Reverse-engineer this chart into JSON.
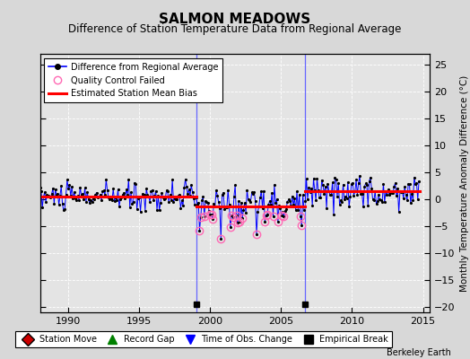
{
  "title": "SALMON MEADOWS",
  "subtitle": "Difference of Station Temperature Data from Regional Average",
  "ylabel_right": "Monthly Temperature Anomaly Difference (°C)",
  "xlim": [
    1988.0,
    2015.5
  ],
  "ylim": [
    -21,
    27
  ],
  "yticks": [
    -20,
    -15,
    -10,
    -5,
    0,
    5,
    10,
    15,
    20,
    25
  ],
  "xticks": [
    1990,
    1995,
    2000,
    2005,
    2010,
    2015
  ],
  "bg_color": "#d8d8d8",
  "plot_bg_color": "#e4e4e4",
  "grid_color": "#ffffff",
  "empirical_break_years": [
    1999.0,
    2006.7
  ],
  "segment1_start": 1988.0,
  "segment1_end": 1999.0,
  "segment1_bias": 0.5,
  "segment2_start": 1999.0,
  "segment2_end": 2006.7,
  "segment2_bias": -1.3,
  "segment3_start": 2006.7,
  "segment3_end": 2014.8,
  "segment3_bias": 1.5,
  "watermark": "Berkeley Earth"
}
